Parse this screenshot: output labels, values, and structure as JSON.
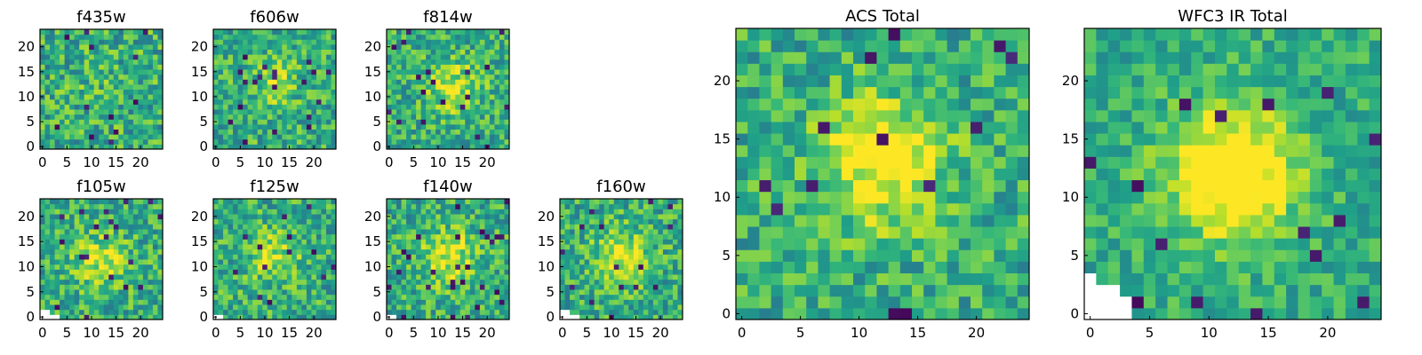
{
  "chart_data": [
    {
      "type": "heatmap",
      "title": "f435w",
      "xticks": [
        "0",
        "5",
        "10",
        "15",
        "20"
      ],
      "yticks": [
        "0",
        "5",
        "10",
        "15",
        "20"
      ],
      "nx": 25,
      "ny": 24,
      "xlim": [
        0,
        25
      ],
      "ylim": [
        0,
        24
      ],
      "colormap": "viridis",
      "seed": 11,
      "noise": 0.55,
      "center": [
        12,
        12
      ],
      "peak": 0.05,
      "missing": []
    },
    {
      "type": "heatmap",
      "title": "f606w",
      "xticks": [
        "0",
        "5",
        "10",
        "15",
        "20"
      ],
      "yticks": [
        "0",
        "5",
        "10",
        "15",
        "20"
      ],
      "nx": 25,
      "ny": 24,
      "xlim": [
        0,
        25
      ],
      "ylim": [
        0,
        24
      ],
      "colormap": "viridis",
      "seed": 23,
      "noise": 0.5,
      "center": [
        12,
        13
      ],
      "peak": 0.2,
      "missing": []
    },
    {
      "type": "heatmap",
      "title": "f814w",
      "xticks": [
        "0",
        "5",
        "10",
        "15",
        "20"
      ],
      "yticks": [
        "0",
        "5",
        "10",
        "15",
        "20"
      ],
      "nx": 25,
      "ny": 24,
      "xlim": [
        0,
        25
      ],
      "ylim": [
        0,
        24
      ],
      "colormap": "viridis",
      "seed": 37,
      "noise": 0.5,
      "center": [
        13,
        12
      ],
      "peak": 0.3,
      "missing": []
    },
    {
      "type": "heatmap",
      "title": "f105w",
      "xticks": [
        "0",
        "5",
        "10",
        "15",
        "20"
      ],
      "yticks": [
        "0",
        "5",
        "10",
        "15",
        "20"
      ],
      "nx": 25,
      "ny": 24,
      "xlim": [
        0,
        25
      ],
      "ylim": [
        0,
        24
      ],
      "colormap": "viridis",
      "seed": 41,
      "noise": 0.5,
      "center": [
        12,
        11
      ],
      "peak": 0.3,
      "missing": [
        [
          0,
          0
        ],
        [
          1,
          0
        ],
        [
          2,
          0
        ],
        [
          3,
          0
        ],
        [
          0,
          1
        ],
        [
          1,
          1
        ]
      ]
    },
    {
      "type": "heatmap",
      "title": "f125w",
      "xticks": [
        "0",
        "5",
        "10",
        "15",
        "20"
      ],
      "yticks": [
        "0",
        "5",
        "10",
        "15",
        "20"
      ],
      "nx": 25,
      "ny": 24,
      "xlim": [
        0,
        25
      ],
      "ylim": [
        0,
        24
      ],
      "colormap": "viridis",
      "seed": 53,
      "noise": 0.5,
      "center": [
        12,
        12
      ],
      "peak": 0.25,
      "missing": [
        [
          0,
          0
        ],
        [
          1,
          0
        ]
      ]
    },
    {
      "type": "heatmap",
      "title": "f140w",
      "xticks": [
        "0",
        "5",
        "10",
        "15",
        "20"
      ],
      "yticks": [
        "0",
        "5",
        "10",
        "15",
        "20"
      ],
      "nx": 25,
      "ny": 24,
      "xlim": [
        0,
        25
      ],
      "ylim": [
        0,
        24
      ],
      "colormap": "viridis",
      "seed": 67,
      "noise": 0.5,
      "center": [
        12,
        12
      ],
      "peak": 0.35,
      "missing": [
        [
          0,
          0
        ],
        [
          1,
          0
        ]
      ]
    },
    {
      "type": "heatmap",
      "title": "f160w",
      "xticks": [
        "0",
        "5",
        "10",
        "15",
        "20"
      ],
      "yticks": [
        "0",
        "5",
        "10",
        "15",
        "20"
      ],
      "nx": 25,
      "ny": 24,
      "xlim": [
        0,
        25
      ],
      "ylim": [
        0,
        24
      ],
      "colormap": "viridis",
      "seed": 79,
      "noise": 0.5,
      "center": [
        12,
        12
      ],
      "peak": 0.35,
      "missing": [
        [
          0,
          0
        ],
        [
          1,
          0
        ],
        [
          2,
          0
        ],
        [
          3,
          0
        ],
        [
          0,
          1
        ],
        [
          1,
          1
        ]
      ]
    },
    {
      "type": "heatmap",
      "title": "ACS Total",
      "xticks": [
        "0",
        "5",
        "10",
        "15",
        "20"
      ],
      "yticks": [
        "0",
        "5",
        "10",
        "15",
        "20"
      ],
      "nx": 25,
      "ny": 25,
      "xlim": [
        0,
        25
      ],
      "ylim": [
        0,
        25
      ],
      "colormap": "viridis",
      "seed": 97,
      "noise": 0.45,
      "center": [
        12,
        13
      ],
      "peak": 0.45,
      "missing": []
    },
    {
      "type": "heatmap",
      "title": "WFC3 IR Total",
      "xticks": [
        "0",
        "5",
        "10",
        "15",
        "20"
      ],
      "yticks": [
        "0",
        "5",
        "10",
        "15",
        "20"
      ],
      "nx": 25,
      "ny": 25,
      "xlim": [
        0,
        25
      ],
      "ylim": [
        0,
        25
      ],
      "colormap": "viridis",
      "seed": 131,
      "noise": 0.35,
      "center": [
        12,
        12
      ],
      "peak": 0.6,
      "missing": [
        [
          0,
          0
        ],
        [
          1,
          0
        ],
        [
          2,
          0
        ],
        [
          3,
          0
        ],
        [
          0,
          1
        ],
        [
          1,
          1
        ],
        [
          2,
          1
        ],
        [
          3,
          1
        ],
        [
          0,
          2
        ],
        [
          1,
          2
        ],
        [
          2,
          2
        ],
        [
          0,
          3
        ]
      ]
    }
  ]
}
